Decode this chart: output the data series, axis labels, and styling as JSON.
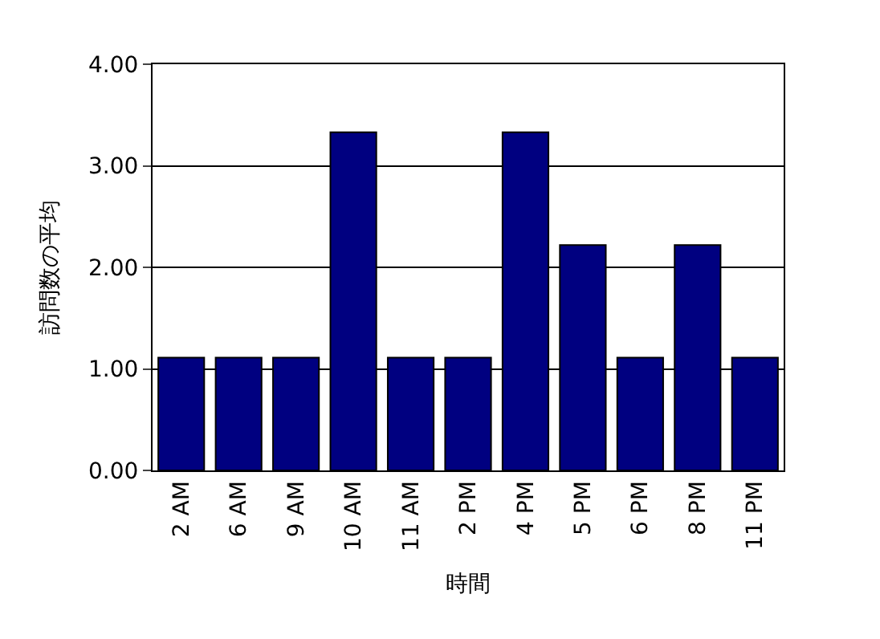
{
  "chart_data": {
    "type": "bar",
    "xlabel": "時間",
    "ylabel": "訪問数の平均",
    "categories": [
      "2 AM",
      "6 AM",
      "9 AM",
      "10 AM",
      "11 AM",
      "2 PM",
      "4 PM",
      "5 PM",
      "6 PM",
      "8 PM",
      "11 PM"
    ],
    "series": [
      {
        "color": "#000080",
        "values": [
          1.11,
          1.11,
          1.11,
          3.33,
          1.11,
          1.11,
          3.33,
          2.22,
          1.11,
          2.22,
          1.11
        ]
      }
    ],
    "ylim": [
      0,
      4
    ],
    "yticks": [
      {
        "value": 0,
        "label": "0.00"
      },
      {
        "value": 1,
        "label": "1.00"
      },
      {
        "value": 2,
        "label": "2.00"
      },
      {
        "value": 3,
        "label": "3.00"
      },
      {
        "value": 4,
        "label": "4.00"
      }
    ],
    "grid": "y",
    "legend": false
  }
}
